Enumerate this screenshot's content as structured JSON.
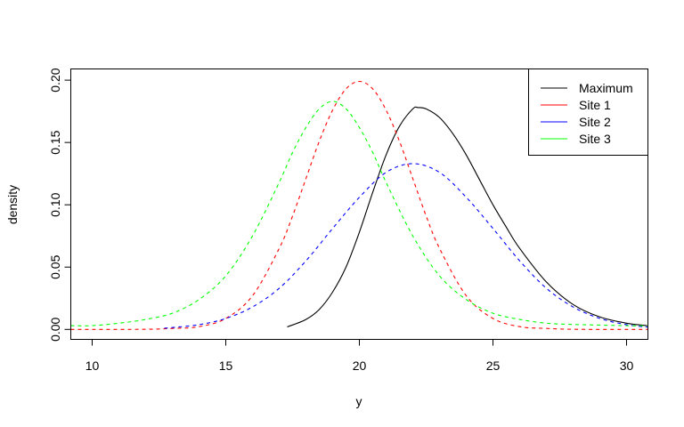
{
  "chart_data": {
    "type": "line",
    "title": "",
    "xlabel": "y",
    "ylabel": "density",
    "xlim": [
      9.2,
      30.8
    ],
    "ylim": [
      -0.008,
      0.209
    ],
    "xticks": [
      10,
      15,
      20,
      25,
      30
    ],
    "yticks": [
      "0.00",
      "0.05",
      "0.10",
      "0.15",
      "0.20"
    ],
    "grid": false,
    "legend_position": "top-right",
    "series": [
      {
        "name": "Maximum",
        "color": "#000000",
        "dash": false,
        "x": [
          17.3,
          18,
          18.5,
          19,
          19.5,
          20,
          20.5,
          21,
          21.5,
          22,
          22.2,
          22.5,
          23,
          23.5,
          24,
          24.5,
          25,
          25.5,
          26,
          27,
          28,
          29,
          30,
          30.8
        ],
        "y": [
          0.002,
          0.008,
          0.016,
          0.03,
          0.05,
          0.078,
          0.11,
          0.14,
          0.163,
          0.177,
          0.178,
          0.177,
          0.17,
          0.157,
          0.14,
          0.12,
          0.1,
          0.082,
          0.065,
          0.038,
          0.02,
          0.01,
          0.005,
          0.003
        ]
      },
      {
        "name": "Site 1",
        "color": "#ff0000",
        "dash": true,
        "x": [
          9.2,
          10,
          12,
          13,
          14,
          15,
          16,
          17,
          17.5,
          18,
          18.5,
          19,
          19.5,
          20,
          20.5,
          21,
          21.5,
          22,
          22.5,
          23,
          24,
          25,
          26,
          27,
          28,
          30,
          30.8
        ],
        "y": [
          0,
          0,
          0.0001,
          0.0008,
          0.0022,
          0.0088,
          0.027,
          0.065,
          0.091,
          0.121,
          0.151,
          0.176,
          0.193,
          0.199,
          0.193,
          0.176,
          0.151,
          0.121,
          0.091,
          0.065,
          0.027,
          0.0088,
          0.0022,
          0.0008,
          0.0001,
          0,
          0
        ]
      },
      {
        "name": "Site 2",
        "color": "#0000ff",
        "dash": true,
        "x": [
          12.7,
          13,
          14,
          15,
          16,
          17,
          18,
          19,
          20,
          21,
          22,
          23,
          24,
          25,
          26,
          27,
          28,
          29,
          30,
          30.8
        ],
        "y": [
          0.001,
          0.0015,
          0.0038,
          0.0088,
          0.018,
          0.033,
          0.055,
          0.081,
          0.106,
          0.126,
          0.133,
          0.126,
          0.106,
          0.081,
          0.055,
          0.033,
          0.018,
          0.0088,
          0.0038,
          0.0018
        ]
      },
      {
        "name": "Site 3",
        "color": "#00ff00",
        "dash": true,
        "x": [
          9.2,
          10,
          11,
          12,
          13,
          14,
          15,
          16,
          17,
          17.5,
          18,
          18.5,
          19,
          19.5,
          20,
          20.5,
          21,
          22,
          23,
          24,
          25,
          26,
          27,
          28,
          30,
          30.8
        ],
        "y": [
          0.003,
          0.003,
          0.005,
          0.008,
          0.013,
          0.024,
          0.043,
          0.075,
          0.118,
          0.142,
          0.162,
          0.177,
          0.183,
          0.177,
          0.162,
          0.142,
          0.118,
          0.075,
          0.043,
          0.024,
          0.013,
          0.008,
          0.005,
          0.004,
          0.003,
          0.003
        ]
      }
    ]
  }
}
